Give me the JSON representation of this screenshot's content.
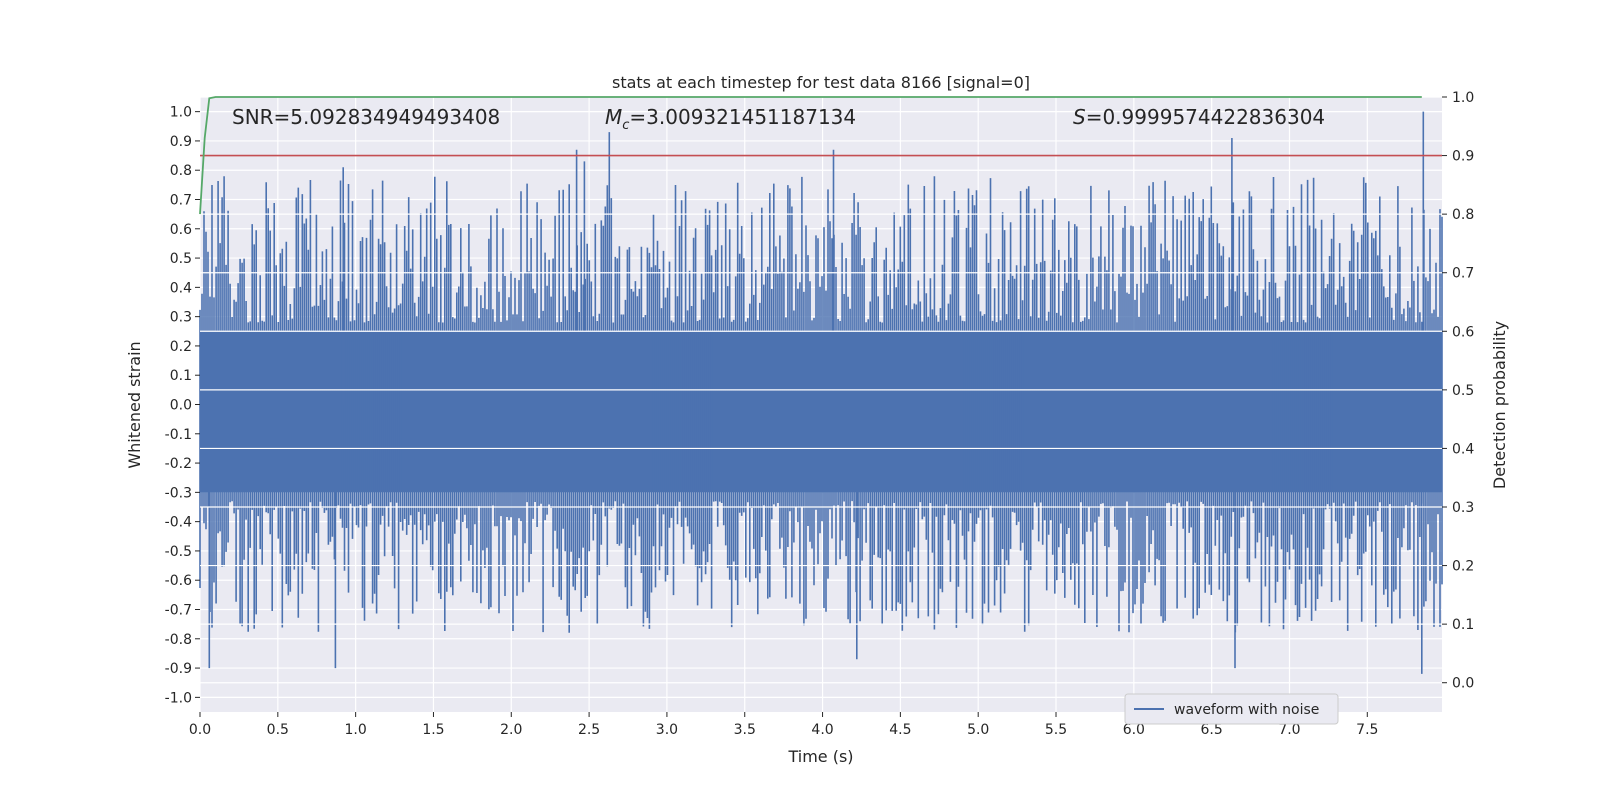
{
  "chart_data": {
    "type": "line",
    "title": "stats at each timestep for test data 8166 [signal=0]",
    "xlabel": "Time (s)",
    "ylabel_left": "Whitened strain",
    "ylabel_right": "Detection probability",
    "xlim": [
      0,
      7.98
    ],
    "ylim_left": [
      -1.05,
      1.05
    ],
    "ylim_right": [
      -0.05,
      1.0
    ],
    "x_ticks": [
      "0.0",
      "0.5",
      "1.0",
      "1.5",
      "2.0",
      "2.5",
      "3.0",
      "3.5",
      "4.0",
      "4.5",
      "5.0",
      "5.5",
      "6.0",
      "6.5",
      "7.0",
      "7.5"
    ],
    "left_ticks": [
      "1.0",
      "0.9",
      "0.8",
      "0.7",
      "0.6",
      "0.5",
      "0.4",
      "0.3",
      "0.2",
      "0.1",
      "0.0",
      "-0.1",
      "-0.2",
      "-0.3",
      "-0.4",
      "-0.5",
      "-0.6",
      "-0.7",
      "-0.8",
      "-0.9",
      "-1.0"
    ],
    "right_ticks": [
      "1.0",
      "0.9",
      "0.8",
      "0.7",
      "0.6",
      "0.5",
      "0.4",
      "0.3",
      "0.2",
      "0.1",
      "0.0"
    ],
    "grid": true,
    "annotations": {
      "snr": "SNR=5.092834949493408",
      "mc_symbol": "M",
      "mc_sub": "c",
      "mc_value": "=3.009321451187134",
      "s_symbol": "S",
      "s_value": "=0.9999574422836304"
    },
    "legend": {
      "label": "waveform with noise",
      "placement": "lower-right"
    },
    "series": [
      {
        "name": "waveform with noise",
        "axis": "left",
        "color": "#4c72b0",
        "envelope_upper": 0.25,
        "envelope_lower": -0.3,
        "peak_range": [
          0.0,
          1.0
        ],
        "trough_range": [
          -1.0,
          0.0
        ],
        "notable_peaks": [
          [
            0.92,
            0.81
          ],
          [
            2.42,
            0.87
          ],
          [
            2.47,
            0.83
          ],
          [
            2.63,
            0.93
          ],
          [
            4.07,
            0.87
          ],
          [
            6.63,
            0.91
          ],
          [
            7.86,
            1.0
          ]
        ],
        "notable_troughs": [
          [
            0.06,
            -0.9
          ],
          [
            0.87,
            -0.9
          ],
          [
            4.22,
            -0.87
          ],
          [
            6.65,
            -0.9
          ],
          [
            7.85,
            -0.92
          ]
        ]
      },
      {
        "name": "detection probability",
        "axis": "right",
        "color": "#55a868",
        "x": [
          0.0,
          0.03,
          0.06,
          0.1,
          0.15,
          7.85
        ],
        "y": [
          0.8,
          0.93,
          0.998,
          1.0,
          1.0,
          1.0
        ]
      },
      {
        "name": "threshold",
        "axis": "right",
        "color": "#c44e52",
        "x": [
          0.0,
          7.98
        ],
        "y": [
          0.9,
          0.9
        ]
      }
    ]
  }
}
